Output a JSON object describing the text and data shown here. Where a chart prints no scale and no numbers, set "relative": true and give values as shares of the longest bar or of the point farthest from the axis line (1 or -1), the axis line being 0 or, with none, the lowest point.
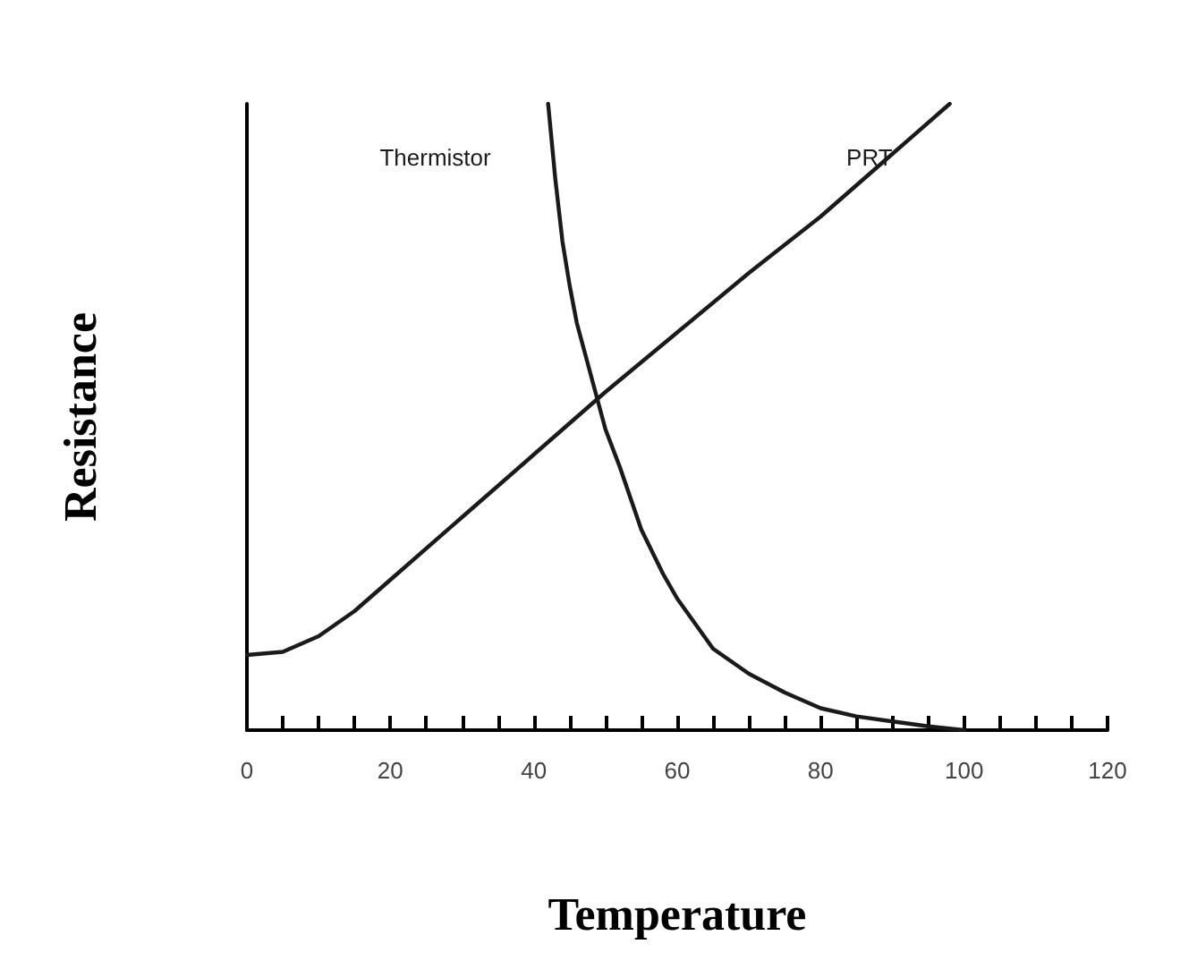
{
  "chart_data": {
    "type": "line",
    "xlabel": "Temperature",
    "ylabel": "Resistance",
    "relative": true,
    "xlim": [
      0,
      120
    ],
    "xticks": [
      0,
      20,
      40,
      60,
      80,
      100,
      120
    ],
    "grid": false,
    "legend": false,
    "marker": "none",
    "line_style": "solid",
    "series": [
      {
        "name": "Thermistor",
        "color": "#1a1a1a",
        "x": [
          42,
          43,
          44,
          45,
          46,
          48,
          50,
          52,
          55,
          58,
          60,
          65,
          70,
          75,
          80,
          85,
          90,
          95,
          100
        ],
        "values": [
          1.0,
          0.88,
          0.78,
          0.71,
          0.65,
          0.565,
          0.48,
          0.42,
          0.32,
          0.25,
          0.21,
          0.13,
          0.09,
          0.06,
          0.035,
          0.022,
          0.014,
          0.006,
          0.0
        ]
      },
      {
        "name": "PRT",
        "color": "#1a1a1a",
        "x": [
          0,
          5,
          10,
          15,
          20,
          30,
          40,
          50,
          60,
          70,
          80,
          90,
          98
        ],
        "values": [
          0.12,
          0.125,
          0.15,
          0.19,
          0.24,
          0.34,
          0.44,
          0.54,
          0.635,
          0.73,
          0.82,
          0.92,
          1.0
        ]
      }
    ]
  }
}
